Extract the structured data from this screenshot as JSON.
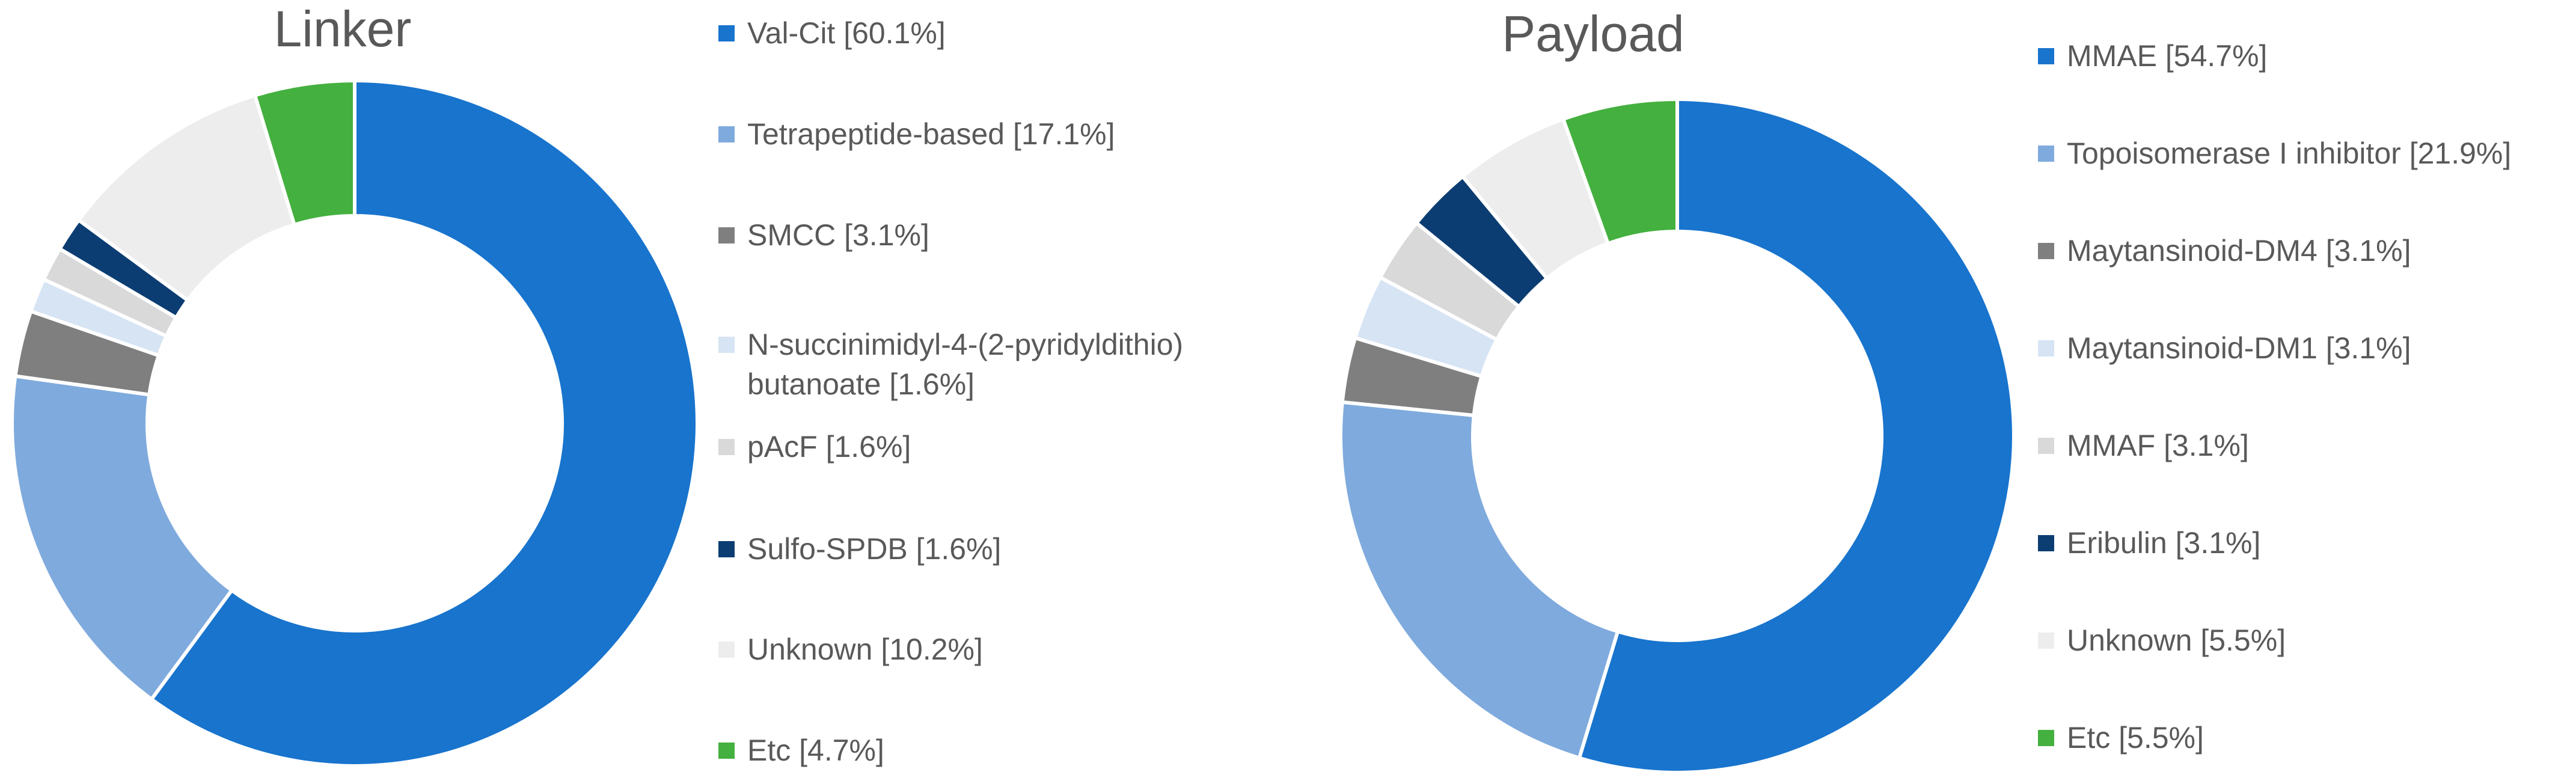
{
  "charts": [
    {
      "chart_data": {
        "type": "pie",
        "title": "Linker",
        "labels": [
          "Val-Cit [60.1%]",
          "Tetrapeptide-based [17.1%]",
          "SMCC [3.1%]",
          "N-succinimidyl-4-(2-pyridyldithio) butanoate [1.6%]",
          "pAcF [1.6%]",
          "Sulfo-SPDB [1.6%]",
          "Unknown [10.2%]",
          "Etc [4.7%]"
        ],
        "values": [
          60.1,
          17.1,
          3.1,
          1.6,
          1.6,
          1.6,
          10.2,
          4.7
        ],
        "colors": [
          "#1874CD",
          "#7FAADD",
          "#7F7F7F",
          "#D6E4F4",
          "#D9D9D9",
          "#0B3D72",
          "#EDEDED",
          "#44B03F"
        ],
        "legend": "right"
      },
      "legend_lines": [
        [
          "Val-Cit [60.1%]"
        ],
        [
          "Tetrapeptide-based [17.1%]"
        ],
        [
          "SMCC [3.1%]"
        ],
        [
          "N-succinimidyl-4-(2-pyridyldithio)",
          "butanoate [1.6%]"
        ],
        [
          "pAcF [1.6%]"
        ],
        [
          "Sulfo-SPDB [1.6%]"
        ],
        [
          "Unknown [10.2%]"
        ],
        [
          "Etc [4.7%]"
        ]
      ]
    },
    {
      "chart_data": {
        "type": "pie",
        "title": "Payload",
        "labels": [
          "MMAE [54.7%]",
          "Topoisomerase I inhibitor [21.9%]",
          "Maytansinoid-DM4 [3.1%]",
          "Maytansinoid-DM1 [3.1%]",
          "MMAF [3.1%]",
          "Eribulin [3.1%]",
          "Unknown [5.5%]",
          "Etc [5.5%]"
        ],
        "values": [
          54.7,
          21.9,
          3.1,
          3.1,
          3.1,
          3.1,
          5.5,
          5.5
        ],
        "colors": [
          "#1874CD",
          "#7FAADD",
          "#7F7F7F",
          "#D6E4F4",
          "#D9D9D9",
          "#0B3D72",
          "#EDEDED",
          "#44B03F"
        ],
        "legend": "right"
      },
      "legend_lines": [
        [
          "MMAE [54.7%]"
        ],
        [
          "Topoisomerase I inhibitor [21.9%]"
        ],
        [
          "Maytansinoid-DM4 [3.1%]"
        ],
        [
          "Maytansinoid-DM1 [3.1%]"
        ],
        [
          "MMAF [3.1%]"
        ],
        [
          "Eribulin [3.1%]"
        ],
        [
          "Unknown [5.5%]"
        ],
        [
          "Etc [5.5%]"
        ]
      ]
    }
  ]
}
